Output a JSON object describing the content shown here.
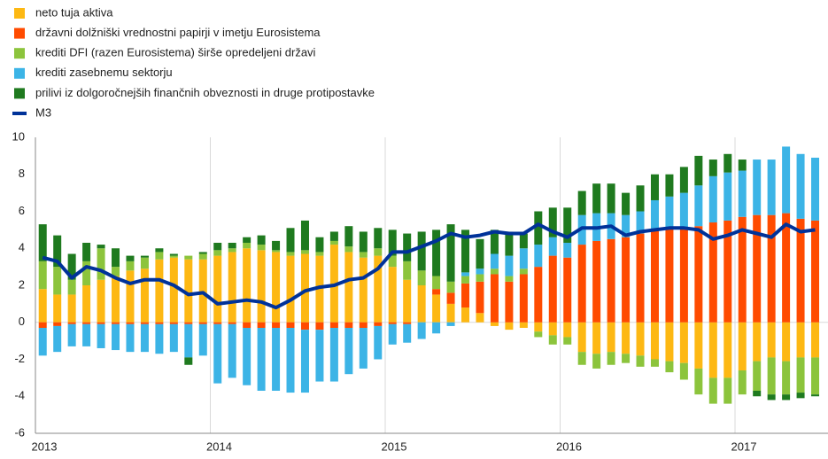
{
  "chart_data": {
    "type": "bar",
    "categories": [
      "2013",
      null,
      null,
      null,
      null,
      null,
      null,
      null,
      null,
      null,
      null,
      null,
      "2014",
      null,
      null,
      null,
      null,
      null,
      null,
      null,
      null,
      null,
      null,
      null,
      "2015",
      null,
      null,
      null,
      null,
      null,
      null,
      null,
      null,
      null,
      null,
      null,
      "2016",
      null,
      null,
      null,
      null,
      null,
      null,
      null,
      null,
      null,
      null,
      null,
      "2017",
      null,
      null,
      null,
      null,
      null
    ],
    "series": [
      {
        "name": "neto tuja aktiva",
        "color": "#fdb813",
        "values": [
          1.8,
          1.5,
          1.5,
          2.0,
          2.3,
          2.5,
          2.8,
          2.9,
          3.4,
          3.5,
          3.4,
          3.4,
          3.6,
          3.8,
          4.0,
          3.9,
          3.8,
          3.6,
          3.7,
          3.6,
          4.2,
          3.8,
          3.5,
          3.6,
          3.0,
          2.3,
          2.0,
          1.5,
          1.0,
          0.8,
          0.5,
          -0.2,
          -0.4,
          -0.3,
          -0.5,
          -0.7,
          -0.8,
          -1.6,
          -1.7,
          -1.6,
          -1.7,
          -1.8,
          -2.0,
          -2.1,
          -2.2,
          -2.5,
          -3.0,
          -3.0,
          -2.6,
          -2.1,
          -1.9,
          -2.1,
          -1.9,
          -1.9
        ]
      },
      {
        "name": "državni dolžniški vrednostni papirji v imetju Eurosistema",
        "color": "#ff4b00",
        "values": [
          -0.3,
          -0.2,
          -0.1,
          -0.1,
          -0.1,
          -0.1,
          -0.1,
          -0.1,
          -0.1,
          -0.1,
          -0.1,
          -0.1,
          -0.1,
          -0.1,
          -0.3,
          -0.3,
          -0.3,
          -0.3,
          -0.4,
          -0.4,
          -0.3,
          -0.3,
          -0.3,
          -0.2,
          -0.1,
          -0.1,
          0.0,
          0.3,
          0.6,
          1.3,
          1.7,
          2.6,
          2.2,
          2.6,
          3.0,
          3.6,
          3.5,
          4.2,
          4.4,
          4.5,
          4.6,
          4.8,
          5.0,
          5.1,
          5.1,
          5.2,
          5.4,
          5.5,
          5.7,
          5.8,
          5.8,
          5.9,
          5.6,
          5.5
        ]
      },
      {
        "name": "krediti DFI (razen Eurosistema) širše opredeljeni državi",
        "color": "#8cc43c",
        "values": [
          1.5,
          1.5,
          0.8,
          1.3,
          1.7,
          0.5,
          0.5,
          0.6,
          0.4,
          0.1,
          0.2,
          0.3,
          0.3,
          0.2,
          0.3,
          0.3,
          0.1,
          0.2,
          0.2,
          0.2,
          0.2,
          0.3,
          0.3,
          0.4,
          0.6,
          1.0,
          0.8,
          0.7,
          0.6,
          0.4,
          0.4,
          0.3,
          0.3,
          0.3,
          -0.3,
          -0.5,
          -0.4,
          -0.7,
          -0.8,
          -0.7,
          -0.5,
          -0.6,
          -0.4,
          -0.6,
          -0.9,
          -1.4,
          -1.4,
          -1.4,
          -1.3,
          -1.6,
          -2.0,
          -1.8,
          -1.9,
          -2.0
        ]
      },
      {
        "name": "krediti zasebnemu sektorju",
        "color": "#3cb4e6",
        "values": [
          -1.5,
          -1.4,
          -1.2,
          -1.2,
          -1.3,
          -1.4,
          -1.5,
          -1.5,
          -1.6,
          -1.5,
          -1.8,
          -1.7,
          -3.2,
          -2.9,
          -3.1,
          -3.4,
          -3.4,
          -3.5,
          -3.4,
          -2.8,
          -2.9,
          -2.5,
          -2.2,
          -1.8,
          -1.1,
          -1.0,
          -0.9,
          -0.6,
          -0.2,
          0.2,
          0.3,
          0.8,
          1.1,
          1.1,
          1.2,
          1.0,
          0.8,
          1.6,
          1.5,
          1.4,
          1.2,
          1.2,
          1.6,
          1.7,
          1.9,
          2.2,
          2.5,
          2.6,
          2.5,
          3.0,
          3.0,
          3.6,
          3.5,
          3.4
        ]
      },
      {
        "name": "prilivi iz dolgoročnejših finančnih obveznosti in druge protipostavke",
        "color": "#1f7a1f",
        "values": [
          2.0,
          1.7,
          1.4,
          1.0,
          0.2,
          1.0,
          0.3,
          0.1,
          0.2,
          0.1,
          -0.4,
          0.1,
          0.4,
          0.3,
          0.3,
          0.5,
          0.5,
          1.3,
          1.6,
          0.8,
          0.5,
          1.1,
          1.1,
          1.1,
          1.4,
          1.5,
          2.1,
          2.5,
          3.1,
          2.3,
          1.6,
          1.3,
          1.3,
          0.8,
          1.8,
          1.6,
          1.9,
          1.3,
          1.6,
          1.6,
          1.2,
          1.4,
          1.4,
          1.2,
          1.4,
          1.6,
          0.9,
          1.0,
          0.6,
          -0.3,
          -0.3,
          -0.3,
          -0.3,
          -0.1
        ]
      },
      {
        "name": "M3",
        "color": "#003299",
        "type": "line",
        "values": [
          3.5,
          3.3,
          2.4,
          3.0,
          2.8,
          2.4,
          2.1,
          2.3,
          2.3,
          2.0,
          1.5,
          1.6,
          1.0,
          1.1,
          1.2,
          1.1,
          0.8,
          1.2,
          1.7,
          1.9,
          2.0,
          2.3,
          2.4,
          2.9,
          3.8,
          3.8,
          4.1,
          4.4,
          4.8,
          4.6,
          4.7,
          4.9,
          4.8,
          4.8,
          5.3,
          4.9,
          4.6,
          5.1,
          5.1,
          5.2,
          4.7,
          4.9,
          5.0,
          5.1,
          5.1,
          5.0,
          4.5,
          4.7,
          5.0,
          4.8,
          4.6,
          5.3,
          4.9,
          5.0
        ]
      }
    ],
    "ylim": [
      -6,
      10
    ],
    "yticks": [
      -6,
      -4,
      -2,
      0,
      2,
      4,
      6,
      8,
      10
    ]
  }
}
